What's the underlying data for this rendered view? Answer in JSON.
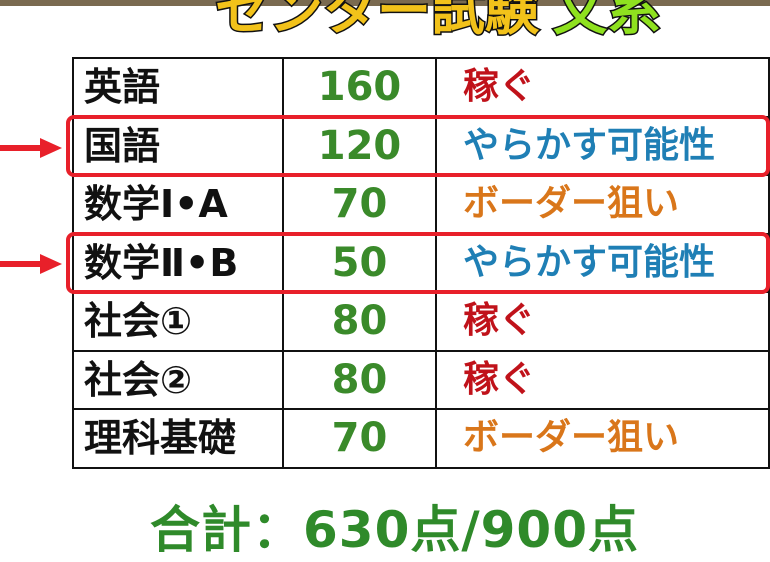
{
  "title": {
    "part1": "センター試験",
    "part2": "文系"
  },
  "colors": {
    "score": "#3a8a2a",
    "earn": "#c0121a",
    "risk": "#1f7fb5",
    "border": "#d9761a",
    "highlight": "#e8202a"
  },
  "rows": [
    {
      "subject": "英語",
      "score": "160",
      "note": "稼ぐ",
      "type": "earn"
    },
    {
      "subject": "国語",
      "score": "120",
      "note": "やらかす可能性",
      "type": "risk",
      "highlighted": true
    },
    {
      "subject": "数学Ⅰ•A",
      "score": "70",
      "note": "ボーダー狙い",
      "type": "border"
    },
    {
      "subject": "数学Ⅱ•B",
      "score": "50",
      "note": "やらかす可能性",
      "type": "risk",
      "highlighted": true
    },
    {
      "subject": "社会①",
      "score": "80",
      "note": "稼ぐ",
      "type": "earn"
    },
    {
      "subject": "社会②",
      "score": "80",
      "note": "稼ぐ",
      "type": "earn"
    },
    {
      "subject": "理科基礎",
      "score": "70",
      "note": "ボーダー狙い",
      "type": "border"
    }
  ],
  "total": "合計：630点/900点"
}
